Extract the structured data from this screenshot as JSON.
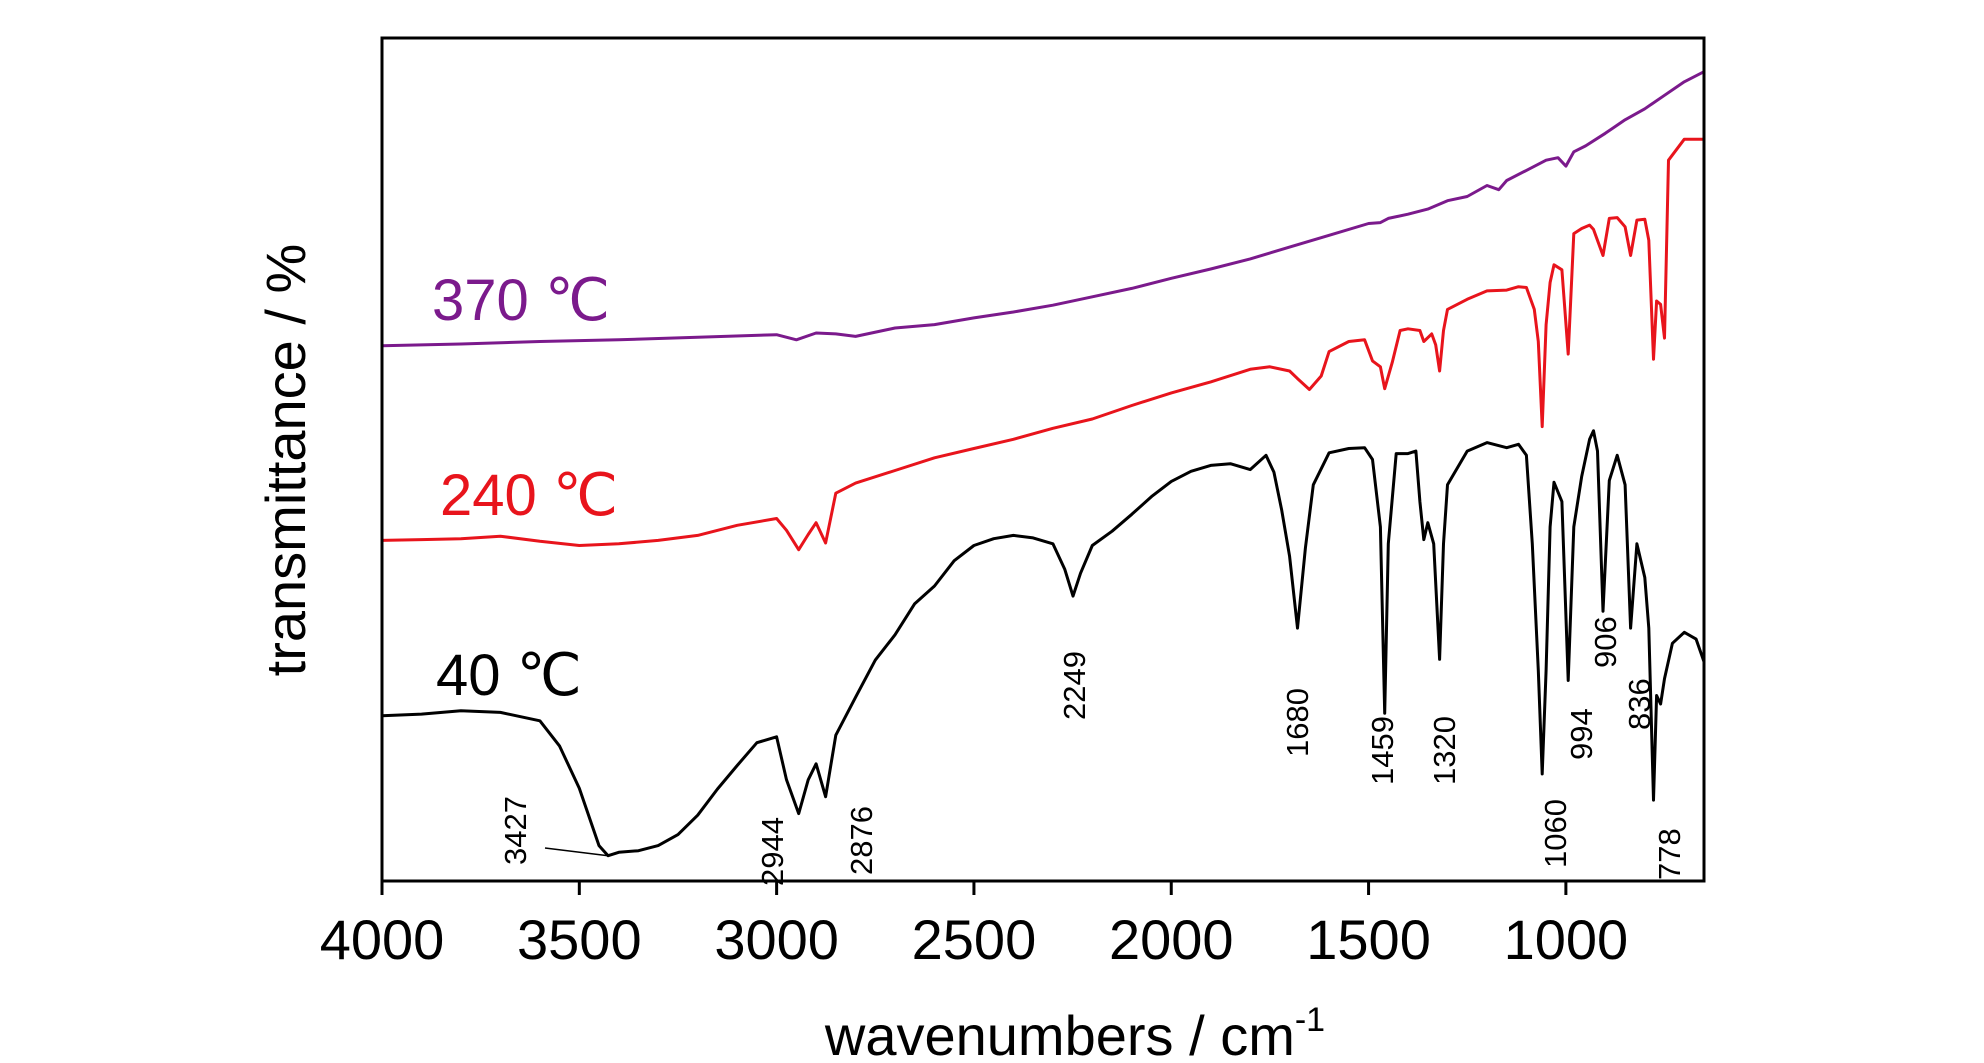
{
  "chart_data": {
    "type": "line",
    "title": "",
    "xlabel": "wavenumbers / cm",
    "xlabel_superscript": "-1",
    "ylabel": "transmittance / %",
    "xlim": [
      4000,
      650
    ],
    "x_reversed": true,
    "y_ticks_shown": false,
    "ylim": [
      0,
      100
    ],
    "grid": false,
    "legend": "inline labels at left",
    "x_ticks": [
      4000,
      3500,
      3000,
      2500,
      2000,
      1500,
      1000
    ],
    "series": [
      {
        "name": "370 ℃",
        "color": "#7b1a8c",
        "points": [
          [
            4000,
            63.5
          ],
          [
            3800,
            63.7
          ],
          [
            3600,
            64.0
          ],
          [
            3400,
            64.2
          ],
          [
            3200,
            64.5
          ],
          [
            3000,
            64.8
          ],
          [
            2950,
            64.2
          ],
          [
            2900,
            65.0
          ],
          [
            2850,
            64.9
          ],
          [
            2800,
            64.6
          ],
          [
            2700,
            65.6
          ],
          [
            2600,
            66.0
          ],
          [
            2500,
            66.8
          ],
          [
            2400,
            67.5
          ],
          [
            2300,
            68.3
          ],
          [
            2200,
            69.3
          ],
          [
            2100,
            70.3
          ],
          [
            2000,
            71.5
          ],
          [
            1900,
            72.6
          ],
          [
            1800,
            73.8
          ],
          [
            1700,
            75.2
          ],
          [
            1600,
            76.6
          ],
          [
            1500,
            78.0
          ],
          [
            1470,
            78.1
          ],
          [
            1450,
            78.6
          ],
          [
            1400,
            79.1
          ],
          [
            1350,
            79.7
          ],
          [
            1300,
            80.7
          ],
          [
            1250,
            81.2
          ],
          [
            1200,
            82.5
          ],
          [
            1170,
            82.0
          ],
          [
            1150,
            83.1
          ],
          [
            1100,
            84.3
          ],
          [
            1050,
            85.5
          ],
          [
            1020,
            85.8
          ],
          [
            1000,
            84.8
          ],
          [
            980,
            86.5
          ],
          [
            950,
            87.2
          ],
          [
            900,
            88.7
          ],
          [
            850,
            90.3
          ],
          [
            800,
            91.6
          ],
          [
            750,
            93.2
          ],
          [
            700,
            94.8
          ],
          [
            650,
            96.0
          ]
        ]
      },
      {
        "name": "240 ℃",
        "color": "#e8141c",
        "points": [
          [
            4000,
            40.4
          ],
          [
            3900,
            40.5
          ],
          [
            3800,
            40.6
          ],
          [
            3700,
            40.9
          ],
          [
            3600,
            40.3
          ],
          [
            3500,
            39.8
          ],
          [
            3400,
            40.0
          ],
          [
            3300,
            40.4
          ],
          [
            3200,
            41.0
          ],
          [
            3100,
            42.2
          ],
          [
            3000,
            43.0
          ],
          [
            2975,
            41.6
          ],
          [
            2944,
            39.3
          ],
          [
            2920,
            41.1
          ],
          [
            2900,
            42.5
          ],
          [
            2876,
            40.1
          ],
          [
            2850,
            46.0
          ],
          [
            2800,
            47.2
          ],
          [
            2700,
            48.7
          ],
          [
            2600,
            50.2
          ],
          [
            2500,
            51.3
          ],
          [
            2400,
            52.4
          ],
          [
            2300,
            53.7
          ],
          [
            2200,
            54.8
          ],
          [
            2100,
            56.4
          ],
          [
            2000,
            57.9
          ],
          [
            1900,
            59.2
          ],
          [
            1800,
            60.7
          ],
          [
            1750,
            61.0
          ],
          [
            1700,
            60.5
          ],
          [
            1680,
            59.6
          ],
          [
            1650,
            58.3
          ],
          [
            1620,
            59.9
          ],
          [
            1600,
            62.8
          ],
          [
            1550,
            64.0
          ],
          [
            1510,
            64.2
          ],
          [
            1490,
            61.7
          ],
          [
            1470,
            61.0
          ],
          [
            1459,
            58.4
          ],
          [
            1440,
            61.5
          ],
          [
            1420,
            65.3
          ],
          [
            1400,
            65.5
          ],
          [
            1370,
            65.3
          ],
          [
            1360,
            64.0
          ],
          [
            1340,
            64.9
          ],
          [
            1330,
            63.6
          ],
          [
            1320,
            60.5
          ],
          [
            1310,
            65.3
          ],
          [
            1300,
            67.8
          ],
          [
            1250,
            69.0
          ],
          [
            1200,
            70.0
          ],
          [
            1150,
            70.1
          ],
          [
            1120,
            70.5
          ],
          [
            1100,
            70.4
          ],
          [
            1080,
            67.8
          ],
          [
            1070,
            64.0
          ],
          [
            1060,
            53.9
          ],
          [
            1050,
            66.0
          ],
          [
            1040,
            71.0
          ],
          [
            1030,
            73.1
          ],
          [
            1010,
            72.5
          ],
          [
            994,
            62.5
          ],
          [
            980,
            76.8
          ],
          [
            960,
            77.4
          ],
          [
            940,
            77.8
          ],
          [
            930,
            77.3
          ],
          [
            906,
            74.2
          ],
          [
            890,
            78.6
          ],
          [
            870,
            78.7
          ],
          [
            850,
            77.6
          ],
          [
            836,
            74.2
          ],
          [
            820,
            78.4
          ],
          [
            800,
            78.5
          ],
          [
            790,
            76.0
          ],
          [
            778,
            61.9
          ],
          [
            770,
            68.8
          ],
          [
            760,
            68.4
          ],
          [
            750,
            64.4
          ],
          [
            740,
            85.5
          ],
          [
            700,
            88.0
          ],
          [
            650,
            88.0
          ]
        ]
      },
      {
        "name": "40 ℃",
        "color": "#000000",
        "points": [
          [
            4000,
            19.6
          ],
          [
            3900,
            19.8
          ],
          [
            3800,
            20.2
          ],
          [
            3700,
            20.0
          ],
          [
            3600,
            19.0
          ],
          [
            3550,
            16.0
          ],
          [
            3500,
            11.0
          ],
          [
            3450,
            4.2
          ],
          [
            3427,
            3.0
          ],
          [
            3400,
            3.4
          ],
          [
            3350,
            3.6
          ],
          [
            3300,
            4.2
          ],
          [
            3250,
            5.5
          ],
          [
            3200,
            7.8
          ],
          [
            3150,
            10.9
          ],
          [
            3100,
            13.7
          ],
          [
            3050,
            16.4
          ],
          [
            3000,
            17.1
          ],
          [
            2975,
            12.0
          ],
          [
            2944,
            8.0
          ],
          [
            2920,
            12.0
          ],
          [
            2900,
            13.9
          ],
          [
            2876,
            10.0
          ],
          [
            2850,
            17.3
          ],
          [
            2800,
            21.8
          ],
          [
            2750,
            26.2
          ],
          [
            2700,
            29.2
          ],
          [
            2650,
            32.9
          ],
          [
            2600,
            35.0
          ],
          [
            2550,
            38.0
          ],
          [
            2500,
            39.8
          ],
          [
            2450,
            40.6
          ],
          [
            2400,
            41.0
          ],
          [
            2350,
            40.7
          ],
          [
            2300,
            40.0
          ],
          [
            2270,
            37.0
          ],
          [
            2249,
            33.8
          ],
          [
            2230,
            36.5
          ],
          [
            2200,
            39.8
          ],
          [
            2150,
            41.5
          ],
          [
            2100,
            43.5
          ],
          [
            2050,
            45.6
          ],
          [
            2000,
            47.4
          ],
          [
            1950,
            48.6
          ],
          [
            1900,
            49.3
          ],
          [
            1850,
            49.5
          ],
          [
            1800,
            48.8
          ],
          [
            1760,
            50.5
          ],
          [
            1740,
            48.5
          ],
          [
            1720,
            44.0
          ],
          [
            1700,
            38.5
          ],
          [
            1680,
            30.0
          ],
          [
            1660,
            39.5
          ],
          [
            1640,
            47.0
          ],
          [
            1600,
            50.8
          ],
          [
            1550,
            51.3
          ],
          [
            1510,
            51.4
          ],
          [
            1490,
            50.0
          ],
          [
            1470,
            42.0
          ],
          [
            1459,
            19.9
          ],
          [
            1450,
            40.0
          ],
          [
            1430,
            50.7
          ],
          [
            1400,
            50.7
          ],
          [
            1380,
            51.0
          ],
          [
            1370,
            45.0
          ],
          [
            1360,
            40.5
          ],
          [
            1350,
            42.5
          ],
          [
            1335,
            40.0
          ],
          [
            1320,
            26.3
          ],
          [
            1310,
            40.0
          ],
          [
            1300,
            47.0
          ],
          [
            1250,
            51.0
          ],
          [
            1200,
            52.0
          ],
          [
            1150,
            51.4
          ],
          [
            1120,
            51.8
          ],
          [
            1100,
            50.5
          ],
          [
            1085,
            40.0
          ],
          [
            1070,
            25.0
          ],
          [
            1060,
            12.7
          ],
          [
            1050,
            25.0
          ],
          [
            1040,
            42.0
          ],
          [
            1030,
            47.3
          ],
          [
            1010,
            45.0
          ],
          [
            994,
            23.8
          ],
          [
            980,
            42.0
          ],
          [
            960,
            48.0
          ],
          [
            940,
            52.4
          ],
          [
            930,
            53.4
          ],
          [
            920,
            51.0
          ],
          [
            906,
            32.0
          ],
          [
            890,
            47.5
          ],
          [
            870,
            50.5
          ],
          [
            850,
            47.0
          ],
          [
            836,
            30.0
          ],
          [
            820,
            40.0
          ],
          [
            800,
            36.0
          ],
          [
            790,
            30.0
          ],
          [
            778,
            9.6
          ],
          [
            770,
            22.0
          ],
          [
            760,
            21.0
          ],
          [
            750,
            24.0
          ],
          [
            730,
            28.2
          ],
          [
            700,
            29.5
          ],
          [
            670,
            28.7
          ],
          [
            650,
            26.0
          ]
        ]
      }
    ],
    "annotations": [
      {
        "text": "3427",
        "x": 3427,
        "series": "40 ℃"
      },
      {
        "text": "2944",
        "x": 2944,
        "series": "40 ℃"
      },
      {
        "text": "2876",
        "x": 2876,
        "series": "40 ℃"
      },
      {
        "text": "2249",
        "x": 2249,
        "series": "40 ℃"
      },
      {
        "text": "1680",
        "x": 1680,
        "series": "40 ℃"
      },
      {
        "text": "1459",
        "x": 1459,
        "series": "40 ℃"
      },
      {
        "text": "1320",
        "x": 1320,
        "series": "40 ℃"
      },
      {
        "text": "1060",
        "x": 1060,
        "series": "40 ℃"
      },
      {
        "text": "994",
        "x": 994,
        "series": "40 ℃"
      },
      {
        "text": "906",
        "x": 906,
        "series": "40 ℃"
      },
      {
        "text": "836",
        "x": 836,
        "series": "40 ℃"
      },
      {
        "text": "778",
        "x": 778,
        "series": "40 ℃"
      }
    ]
  }
}
